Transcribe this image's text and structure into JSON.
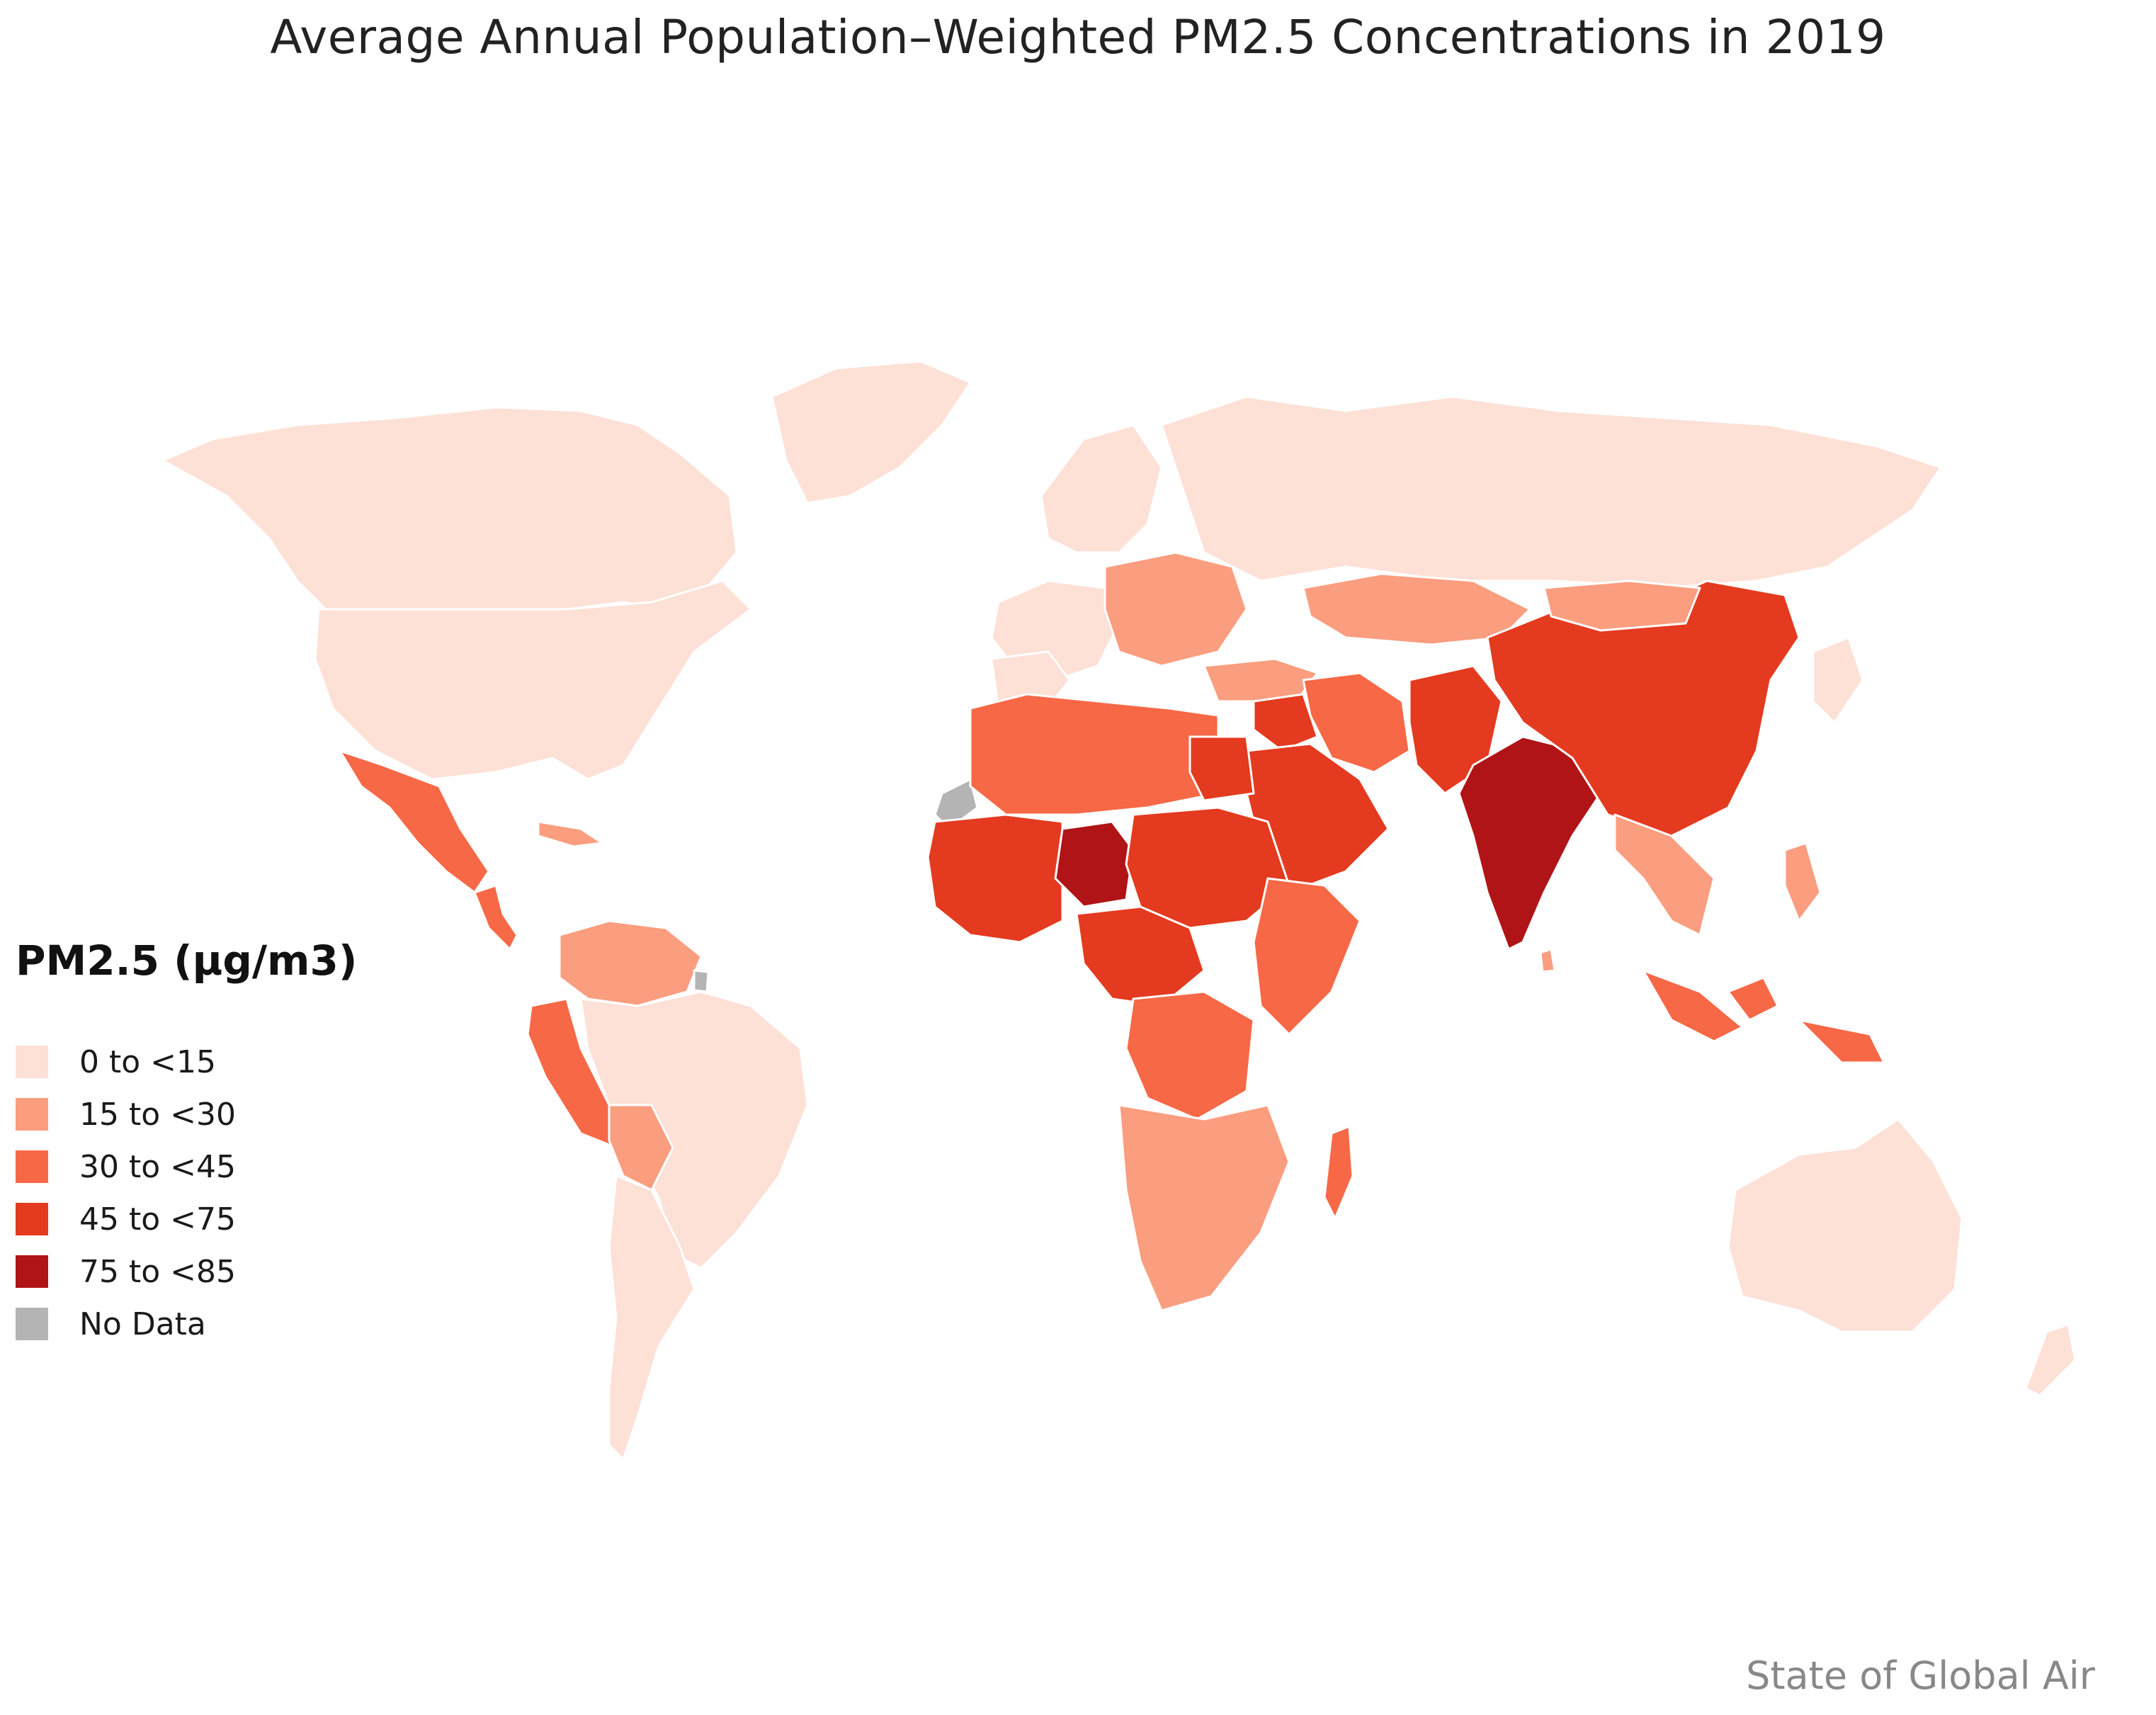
{
  "title": "Average Annual Population–Weighted PM2.5 Concentrations in 2019",
  "legend": {
    "title": "PM2.5 (µg/m3)",
    "items": [
      {
        "label": "0 to <15",
        "color": "#fde0d6"
      },
      {
        "label": "15 to <30",
        "color": "#fb9d7f"
      },
      {
        "label": "30 to <45",
        "color": "#f76846"
      },
      {
        "label": "45 to <75",
        "color": "#e43a1f"
      },
      {
        "label": "75 to <85",
        "color": "#b01417"
      },
      {
        "label": "No Data",
        "color": "#b4b4b4"
      }
    ]
  },
  "source": "State of Global Air"
}
